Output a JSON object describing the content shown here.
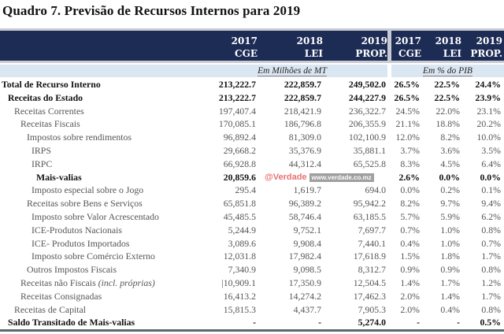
{
  "title": "Quadro 7. Previsão de Recursos Internos para 2019",
  "columns": [
    {
      "year": "2017",
      "type": "CGE"
    },
    {
      "year": "2018",
      "type": "LEI"
    },
    {
      "year": "2019",
      "type": "PROP."
    },
    {
      "year": "2017",
      "type": "CGE"
    },
    {
      "year": "2018",
      "type": "LEI"
    },
    {
      "year": "2019",
      "type": "PROP."
    }
  ],
  "unit_left": "Em Milhões de MT",
  "unit_right": "Em % do PIB",
  "rows": [
    {
      "label": "Total de Recurso Interno",
      "bold": true,
      "level": 0,
      "values": [
        "213,222.7",
        "222,859.7",
        "249,502.0",
        "26.5%",
        "22.5%",
        "24.4%"
      ]
    },
    {
      "label": "Receitas do Estado",
      "bold": true,
      "level": 1,
      "values": [
        "213,222.7",
        "222,859.7",
        "244,227.9",
        "26.5%",
        "22.5%",
        "23.9%"
      ]
    },
    {
      "label": "Receitas Correntes",
      "level": 2,
      "values": [
        "197,407.4",
        "218,421.9",
        "236,322.7",
        "24.5%",
        "22.0%",
        "23.1%"
      ]
    },
    {
      "label": "Receitas Fiscais",
      "level": 3,
      "values": [
        "170,085.1",
        "186,796.8",
        "206,355.9",
        "21.1%",
        "18.8%",
        "20.2%"
      ]
    },
    {
      "label": "Impostos sobre rendimentos",
      "level": 4,
      "values": [
        "96,892.4",
        "81,309.0",
        "102,100.9",
        "12.0%",
        "8.2%",
        "10.0%"
      ]
    },
    {
      "label": "IRPS",
      "level": 5,
      "values": [
        "29,668.2",
        "35,376.9",
        "35,881.1",
        "3.7%",
        "3.6%",
        "3.5%"
      ]
    },
    {
      "label": "IRPC",
      "level": 5,
      "values": [
        "66,928.8",
        "44,312.4",
        "65,525.8",
        "8.3%",
        "4.5%",
        "6.4%"
      ]
    },
    {
      "label": "Mais-valias",
      "bold": true,
      "level": 6,
      "values": [
        "20,859.6",
        "",
        "",
        "2.6%",
        "0.0%",
        "0.0%"
      ]
    },
    {
      "label": "Imposto especial sobre o Jogo",
      "level": 5,
      "values": [
        "295.4",
        "1,619.7",
        "694.0",
        "0.0%",
        "0.2%",
        "0.1%"
      ]
    },
    {
      "label": "Receitas sobre Bens e Serviços",
      "level": 4,
      "values": [
        "65,851.8",
        "96,389.2",
        "95,942.2",
        "8.2%",
        "9.7%",
        "9.4%"
      ]
    },
    {
      "label": "Imposto sobre Valor Acrescentado",
      "level": 5,
      "values": [
        "45,485.5",
        "58,746.4",
        "63,185.5",
        "5.7%",
        "5.9%",
        "6.2%"
      ]
    },
    {
      "label": "ICE-Produtos Nacionais",
      "level": 5,
      "values": [
        "5,244.9",
        "9,752.1",
        "7,697.7",
        "0.7%",
        "1.0%",
        "0.8%"
      ]
    },
    {
      "label": "ICE- Produtos Importados",
      "level": 5,
      "values": [
        "3,089.6",
        "9,908.4",
        "7,440.1",
        "0.4%",
        "1.0%",
        "0.7%"
      ]
    },
    {
      "label": "Imposto sobre Comércio Externo",
      "level": 5,
      "values": [
        "12,031.8",
        "17,982.4",
        "17,618.9",
        "1.5%",
        "1.8%",
        "1.7%"
      ]
    },
    {
      "label": "Outros Impostos Fiscais",
      "level": 4,
      "values": [
        "7,340.9",
        "9,098.5",
        "8,312.7",
        "0.9%",
        "0.9%",
        "0.8%"
      ]
    },
    {
      "label": "Receitas não Fiscais",
      "label_note": "(incl. próprias)",
      "level": 3,
      "values": [
        "|10,909.1",
        "17,350.9",
        "12,504.5",
        "1.4%",
        "1.7%",
        "1.2%"
      ]
    },
    {
      "label": "Receitas Consignadas",
      "level": 3,
      "values": [
        "16,413.2",
        "14,274.2",
        "17,462.3",
        "2.0%",
        "1.4%",
        "1.7%"
      ]
    },
    {
      "label": "Receitas de Capital",
      "level": 2,
      "values": [
        "15,815.3",
        "4,437.7",
        "7,905.3",
        "2.0%",
        "0.4%",
        "0.8%"
      ]
    },
    {
      "label": "Saldo Transitado de Mais-valias",
      "bold": true,
      "level": 1,
      "values": [
        "-",
        "-",
        "5,274.0",
        "-",
        "-",
        "0.5%"
      ]
    }
  ],
  "watermark": {
    "brand": "@Verdade",
    "url": "www.verdade.co.mz",
    "color": "#e05050"
  },
  "colors": {
    "header_bg": "#1d2c55",
    "subheader_bg": "#dbe6f3"
  }
}
